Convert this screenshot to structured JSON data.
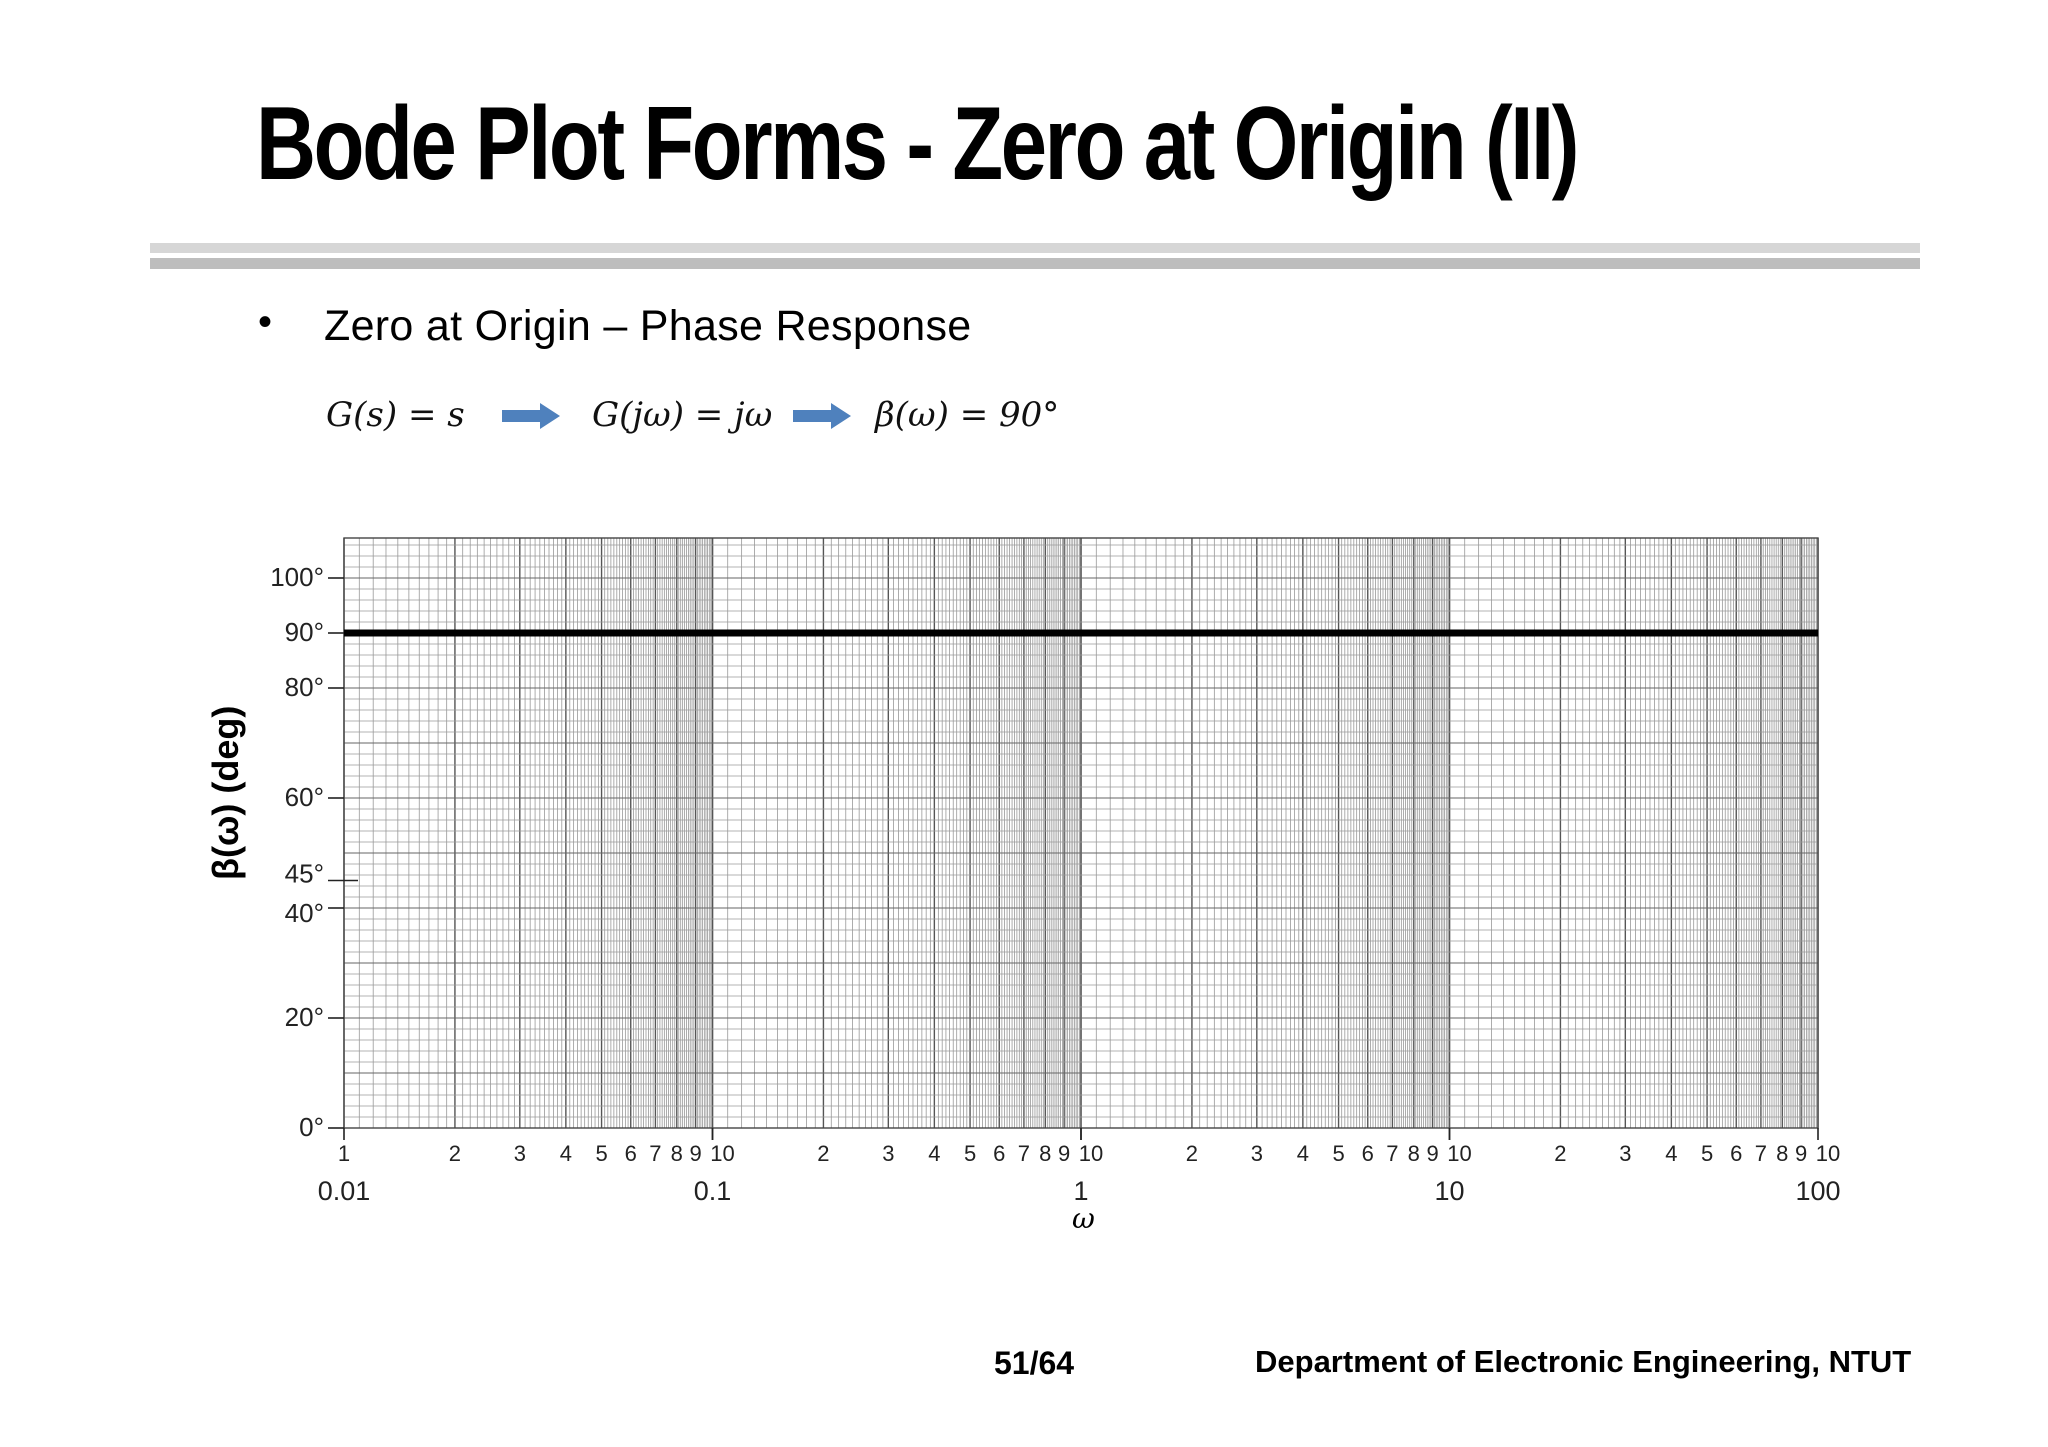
{
  "slide": {
    "title": "Bode Plot Forms - Zero at Origin (II)",
    "bullet": "Zero at Origin – Phase Response",
    "page_number": "51/64",
    "department": "Department of Electronic Engineering, NTUT"
  },
  "equations": {
    "eq1": "G(s) = s",
    "eq2": "G(jω) = jω",
    "eq3": "β(ω) = 90°",
    "arrow_color": "#4f81bd"
  },
  "chart_data": {
    "type": "line",
    "xscale": "log",
    "xlim": [
      0.01,
      100
    ],
    "ylim": [
      0,
      100
    ],
    "xlabel": "ω",
    "ylabel": "β(ω)  (deg)",
    "y_ticks": [
      {
        "value": 100,
        "label": "100°"
      },
      {
        "value": 90,
        "label": "90°"
      },
      {
        "value": 80,
        "label": "80°"
      },
      {
        "value": 60,
        "label": "60°"
      },
      {
        "value": 45,
        "label": "45°"
      },
      {
        "value": 40,
        "label": "40°"
      },
      {
        "value": 20,
        "label": "20°"
      },
      {
        "value": 0,
        "label": "0°"
      }
    ],
    "x_major_ticks": [
      {
        "value": 0.01,
        "label": "0.01"
      },
      {
        "value": 0.1,
        "label": "0.1"
      },
      {
        "value": 1,
        "label": "1"
      },
      {
        "value": 10,
        "label": "10"
      },
      {
        "value": 100,
        "label": "100"
      }
    ],
    "x_minor_labels": [
      "1",
      "2",
      "3",
      "4",
      "5",
      "6",
      "7",
      "8",
      "9",
      "10"
    ],
    "grid": true,
    "series": [
      {
        "x": [
          0.01,
          100
        ],
        "y": [
          90,
          90
        ],
        "color": "#000000"
      }
    ]
  }
}
